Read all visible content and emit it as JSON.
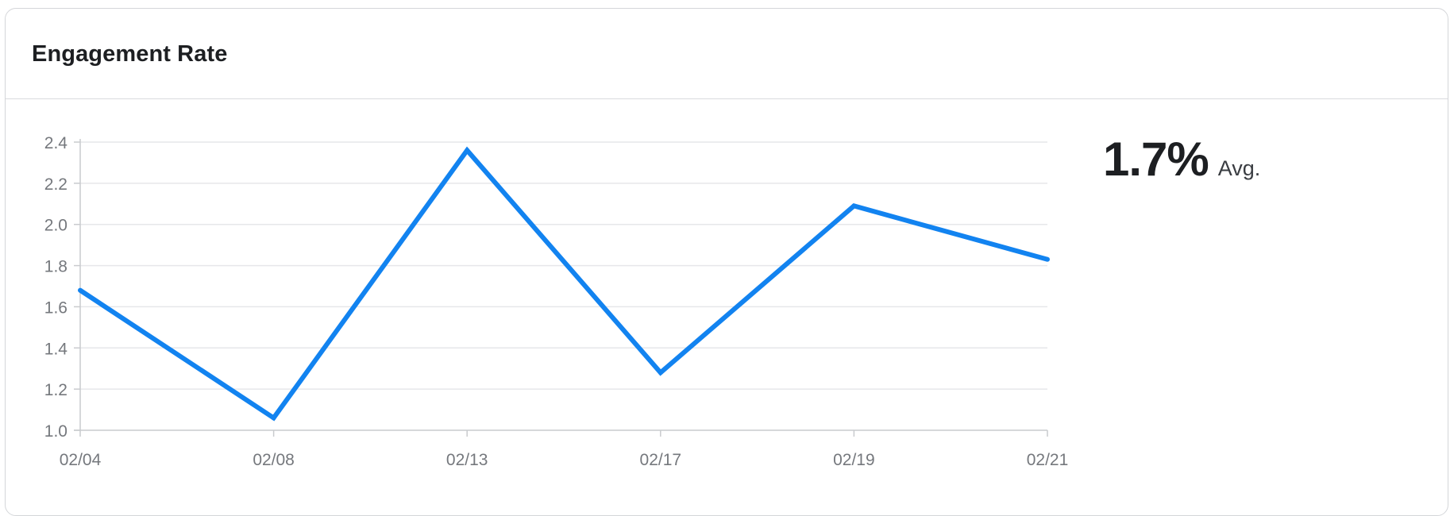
{
  "card": {
    "title": "Engagement Rate"
  },
  "summary": {
    "value": "1.7%",
    "label": "Avg."
  },
  "colors": {
    "line": "#1283f0",
    "grid": "#e6e7ea",
    "axis": "#c9cbce",
    "tick_text": "#75787d"
  },
  "chart_data": {
    "type": "line",
    "title": "",
    "xlabel": "",
    "ylabel": "",
    "categories": [
      "02/04",
      "02/08",
      "02/13",
      "02/17",
      "02/19",
      "02/21"
    ],
    "series": [
      {
        "values": [
          1.68,
          1.06,
          2.36,
          1.28,
          2.09,
          1.83
        ]
      }
    ],
    "ylim": [
      1.0,
      2.4
    ],
    "yticks": [
      "1.0",
      "1.2",
      "1.4",
      "1.6",
      "1.8",
      "2.0",
      "2.2",
      "2.4"
    ],
    "grid": true,
    "legend": "none"
  }
}
